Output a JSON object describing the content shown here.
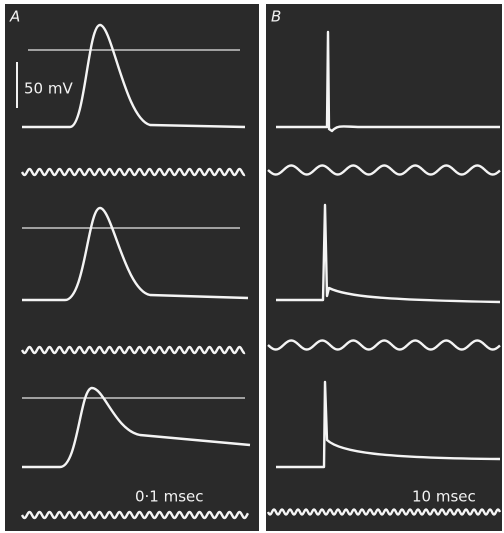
{
  "panels": [
    {
      "label": "A",
      "scale_bar": "50 mV",
      "time_label": "0·1 msec"
    },
    {
      "label": "B",
      "time_label": "10 msec"
    }
  ]
}
